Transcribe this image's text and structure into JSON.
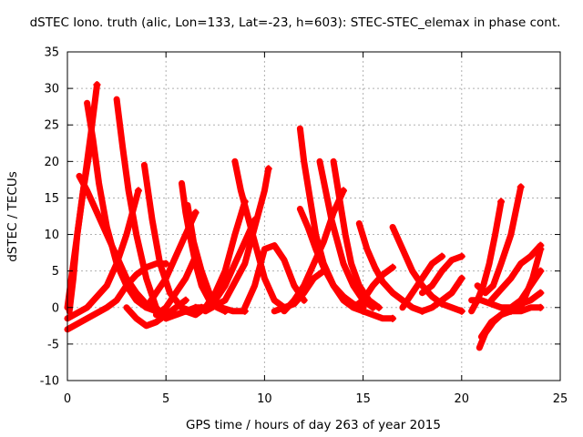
{
  "chart_data": {
    "type": "scatter",
    "title": "dSTEC Iono. truth (alic, Lon=133, Lat=-23, h=603): STEC-STEC_elemax in phase cont.",
    "xlabel": "GPS time / hours of day 263 of year 2015",
    "ylabel": "dSTEC  / TECUs",
    "xlim": [
      0,
      25
    ],
    "ylim": [
      -10,
      35
    ],
    "x_ticks": [
      0,
      5,
      10,
      15,
      20,
      25
    ],
    "y_ticks": [
      -10,
      -5,
      0,
      5,
      10,
      15,
      20,
      25,
      30,
      35
    ],
    "grid": true,
    "color": "#ff0000",
    "series": [
      {
        "x": [
          0.0,
          0.3,
          0.6,
          0.9,
          1.2,
          1.5
        ],
        "y": [
          0,
          6,
          12,
          18,
          24,
          30.5
        ]
      },
      {
        "x": [
          0.1,
          0.3,
          0.5,
          0.8,
          1.1
        ],
        "y": [
          -0.5,
          4,
          10,
          16,
          21
        ]
      },
      {
        "x": [
          0.6,
          1.0,
          1.5,
          2.0,
          2.5,
          3.0,
          3.5,
          4.0,
          4.5,
          5.0,
          5.5,
          6.0
        ],
        "y": [
          18,
          16,
          13,
          10,
          7,
          4,
          2,
          0.5,
          -0.5,
          -1,
          -1,
          -0.5
        ]
      },
      {
        "x": [
          1.0,
          1.3,
          1.6,
          2.0,
          2.5,
          3.0,
          3.5,
          4.0,
          4.5,
          5.0
        ],
        "y": [
          28,
          23,
          17,
          11,
          6,
          3,
          1,
          0,
          -0.5,
          -1
        ]
      },
      {
        "x": [
          2.5,
          2.8,
          3.1,
          3.5,
          4.0,
          4.5,
          5.0,
          5.5,
          6.0,
          6.5
        ],
        "y": [
          28.5,
          22,
          16,
          10,
          4,
          0,
          -1.5,
          -1,
          -0.5,
          0
        ]
      },
      {
        "x": [
          3.9,
          4.3,
          4.7,
          5.2,
          5.8,
          6.3,
          6.8
        ],
        "y": [
          19.5,
          12,
          6,
          2,
          0,
          -0.5,
          0
        ]
      },
      {
        "x": [
          0.0,
          1.0,
          2.0,
          2.5,
          3.0,
          3.3,
          3.6
        ],
        "y": [
          -1.5,
          0,
          3,
          6,
          10,
          13,
          16
        ]
      },
      {
        "x": [
          0.0,
          1.0,
          2.0,
          2.5,
          3.0,
          3.5,
          4.0,
          4.5,
          5.0
        ],
        "y": [
          -3,
          -1.5,
          0,
          1,
          3,
          4.5,
          5.5,
          6,
          6
        ]
      },
      {
        "x": [
          3.0,
          3.5,
          4.0,
          4.5,
          5.0,
          5.5,
          6.0
        ],
        "y": [
          0,
          -1.5,
          -2.5,
          -2,
          -1,
          0,
          1
        ]
      },
      {
        "x": [
          4.0,
          4.5,
          5.0,
          5.5,
          6.0,
          6.5
        ],
        "y": [
          0,
          2,
          4,
          7,
          10,
          13
        ]
      },
      {
        "x": [
          4.5,
          5.0,
          5.5,
          6.0,
          6.5
        ],
        "y": [
          -1,
          0,
          2,
          4,
          7
        ]
      },
      {
        "x": [
          5.8,
          6.0,
          6.2,
          6.5,
          6.8,
          7.2,
          7.6,
          8.0
        ],
        "y": [
          17,
          13,
          10,
          6,
          3,
          1,
          0,
          -0.5
        ]
      },
      {
        "x": [
          6.1,
          6.4,
          6.8,
          7.2,
          7.8,
          8.4,
          9.0
        ],
        "y": [
          14,
          9,
          5,
          2,
          0,
          -0.5,
          -0.5
        ]
      },
      {
        "x": [
          6.0,
          6.5,
          7.0,
          7.5,
          8.0,
          8.5,
          9.0
        ],
        "y": [
          -0.5,
          -1,
          0,
          2,
          5,
          10,
          14.5
        ]
      },
      {
        "x": [
          6.5,
          7.0,
          7.5,
          8.0,
          8.5,
          9.0,
          9.5
        ],
        "y": [
          0,
          0,
          1,
          3,
          6,
          9,
          12
        ]
      },
      {
        "x": [
          8.5,
          8.8,
          9.1,
          9.4,
          9.7,
          10.0,
          10.5,
          11.0
        ],
        "y": [
          20,
          16,
          13,
          10,
          7,
          4,
          1,
          0
        ]
      },
      {
        "x": [
          9.0,
          9.5,
          10.0,
          10.5,
          11.0,
          11.5,
          12.0
        ],
        "y": [
          0,
          3,
          8,
          8.5,
          6.5,
          3,
          1
        ]
      },
      {
        "x": [
          7.0,
          8.0,
          9.0,
          9.5,
          10.0,
          10.2
        ],
        "y": [
          -0.5,
          1,
          6,
          11,
          16,
          19
        ]
      },
      {
        "x": [
          10.5,
          11.0,
          11.5,
          12.0,
          12.5,
          13.0
        ],
        "y": [
          -0.5,
          0,
          0.5,
          2,
          4,
          5
        ]
      },
      {
        "x": [
          11.0,
          11.5,
          12.0,
          12.5,
          13.0,
          13.5,
          14.0
        ],
        "y": [
          -0.5,
          1,
          3,
          6,
          9,
          13,
          16
        ]
      },
      {
        "x": [
          11.8,
          12.0,
          12.3,
          12.6,
          13.0,
          13.5,
          14.0,
          14.5,
          15.0
        ],
        "y": [
          24.5,
          20,
          15,
          10,
          6,
          3,
          1,
          0,
          -0.5
        ]
      },
      {
        "x": [
          11.8,
          12.2,
          12.6,
          13.0,
          13.5,
          14.0,
          14.5,
          15.0
        ],
        "y": [
          13.5,
          11,
          8,
          5.5,
          3,
          1.5,
          0.5,
          0
        ]
      },
      {
        "x": [
          12.8,
          13.1,
          13.4,
          13.7,
          14.0,
          14.5,
          15.0,
          15.5
        ],
        "y": [
          20,
          16,
          12,
          9,
          6,
          3,
          1,
          0
        ]
      },
      {
        "x": [
          13.5,
          13.8,
          14.1,
          14.4,
          14.8,
          15.3,
          15.8
        ],
        "y": [
          20,
          15,
          10,
          6,
          3,
          1,
          0
        ]
      },
      {
        "x": [
          14.8,
          15.2,
          15.6,
          16.0,
          16.5,
          17.0,
          17.5,
          18.0
        ],
        "y": [
          11.5,
          8,
          5.5,
          3.5,
          2,
          1,
          0,
          -0.5
        ]
      },
      {
        "x": [
          16.5,
          17.0,
          17.5,
          18.0,
          18.5,
          19.0,
          19.5,
          20.0
        ],
        "y": [
          11,
          8,
          5,
          3,
          1.5,
          0.5,
          0,
          -0.5
        ]
      },
      {
        "x": [
          14.5,
          15.0,
          15.5,
          16.0,
          16.5
        ],
        "y": [
          0,
          1,
          3,
          4.5,
          5.5
        ]
      },
      {
        "x": [
          15.0,
          15.5,
          16.0,
          16.5
        ],
        "y": [
          -0.5,
          -1,
          -1.5,
          -1.5
        ]
      },
      {
        "x": [
          17.0,
          17.5,
          18.0,
          18.5,
          19.0
        ],
        "y": [
          0,
          2,
          4,
          6,
          7
        ]
      },
      {
        "x": [
          18.0,
          18.5,
          19.0,
          19.5,
          20.0
        ],
        "y": [
          -0.5,
          0,
          1,
          2,
          4
        ]
      },
      {
        "x": [
          18.0,
          18.5,
          19.0,
          19.5,
          20.0
        ],
        "y": [
          2,
          3,
          5,
          6.5,
          7
        ]
      },
      {
        "x": [
          20.5,
          20.8,
          21.1,
          21.4,
          21.7,
          22.0
        ],
        "y": [
          -0.5,
          1,
          3,
          6,
          10,
          14.5
        ]
      },
      {
        "x": [
          20.8,
          21.2,
          21.6,
          22.0,
          22.5,
          23.0
        ],
        "y": [
          3,
          2,
          3,
          6,
          10,
          16.5
        ]
      },
      {
        "x": [
          20.9,
          21.2,
          21.6,
          22.0,
          22.5,
          23.0,
          23.5,
          24.0
        ],
        "y": [
          -5.5,
          -3.5,
          -2,
          -1,
          -0.5,
          -0.5,
          0,
          0
        ]
      },
      {
        "x": [
          21.0,
          21.5,
          22.0,
          22.5,
          23.0,
          23.5,
          24.0
        ],
        "y": [
          -4,
          -2,
          -1,
          0,
          0.5,
          1,
          2
        ]
      },
      {
        "x": [
          21.5,
          22.0,
          22.5,
          23.0,
          23.5,
          24.0
        ],
        "y": [
          1,
          2.5,
          4,
          6,
          7,
          8.5
        ]
      },
      {
        "x": [
          22.0,
          22.5,
          23.0,
          23.5,
          24.0
        ],
        "y": [
          0,
          0,
          1,
          3,
          5
        ]
      },
      {
        "x": [
          20.5,
          21.0,
          21.5,
          22.0,
          22.5
        ],
        "y": [
          1,
          1,
          0.5,
          0,
          -0.5
        ]
      },
      {
        "x": [
          23.0,
          23.3,
          23.6,
          24.0
        ],
        "y": [
          0,
          2,
          4,
          8
        ]
      }
    ]
  }
}
